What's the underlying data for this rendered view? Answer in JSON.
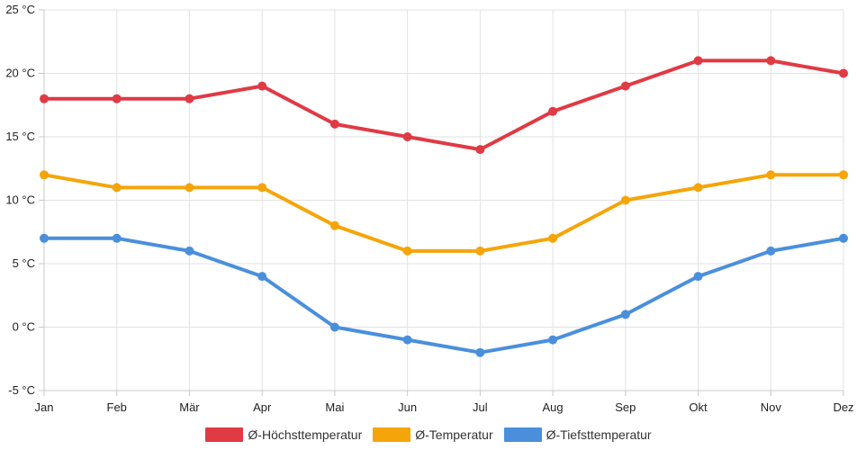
{
  "chart_data": {
    "type": "line",
    "title": "",
    "xlabel": "",
    "ylabel": "",
    "categories": [
      "Jan",
      "Feb",
      "Mär",
      "Apr",
      "Mai",
      "Jun",
      "Jul",
      "Aug",
      "Sep",
      "Okt",
      "Nov",
      "Dez"
    ],
    "ylim": [
      -5,
      25
    ],
    "yticks": [
      -5,
      0,
      5,
      10,
      15,
      20,
      25
    ],
    "ytick_labels": [
      "-5 °C",
      "0 °C",
      "5 °C",
      "10 °C",
      "15 °C",
      "20 °C",
      "25 °C"
    ],
    "grid": true,
    "legend_position": "bottom-center",
    "series": [
      {
        "name": "Ø-Höchsttemperatur",
        "color": "#e03a44",
        "values": [
          18,
          18,
          18,
          19,
          16,
          15,
          14,
          17,
          19,
          21,
          21,
          20
        ]
      },
      {
        "name": "Ø-Temperatur",
        "color": "#f5a50a",
        "values": [
          12,
          11,
          11,
          11,
          8,
          6,
          6,
          7,
          10,
          11,
          12,
          12
        ]
      },
      {
        "name": "Ø-Tiefsttemperatur",
        "color": "#4a8fdc",
        "values": [
          7,
          7,
          6,
          4,
          0,
          -1,
          -2,
          -1,
          1,
          4,
          6,
          7
        ]
      }
    ]
  }
}
